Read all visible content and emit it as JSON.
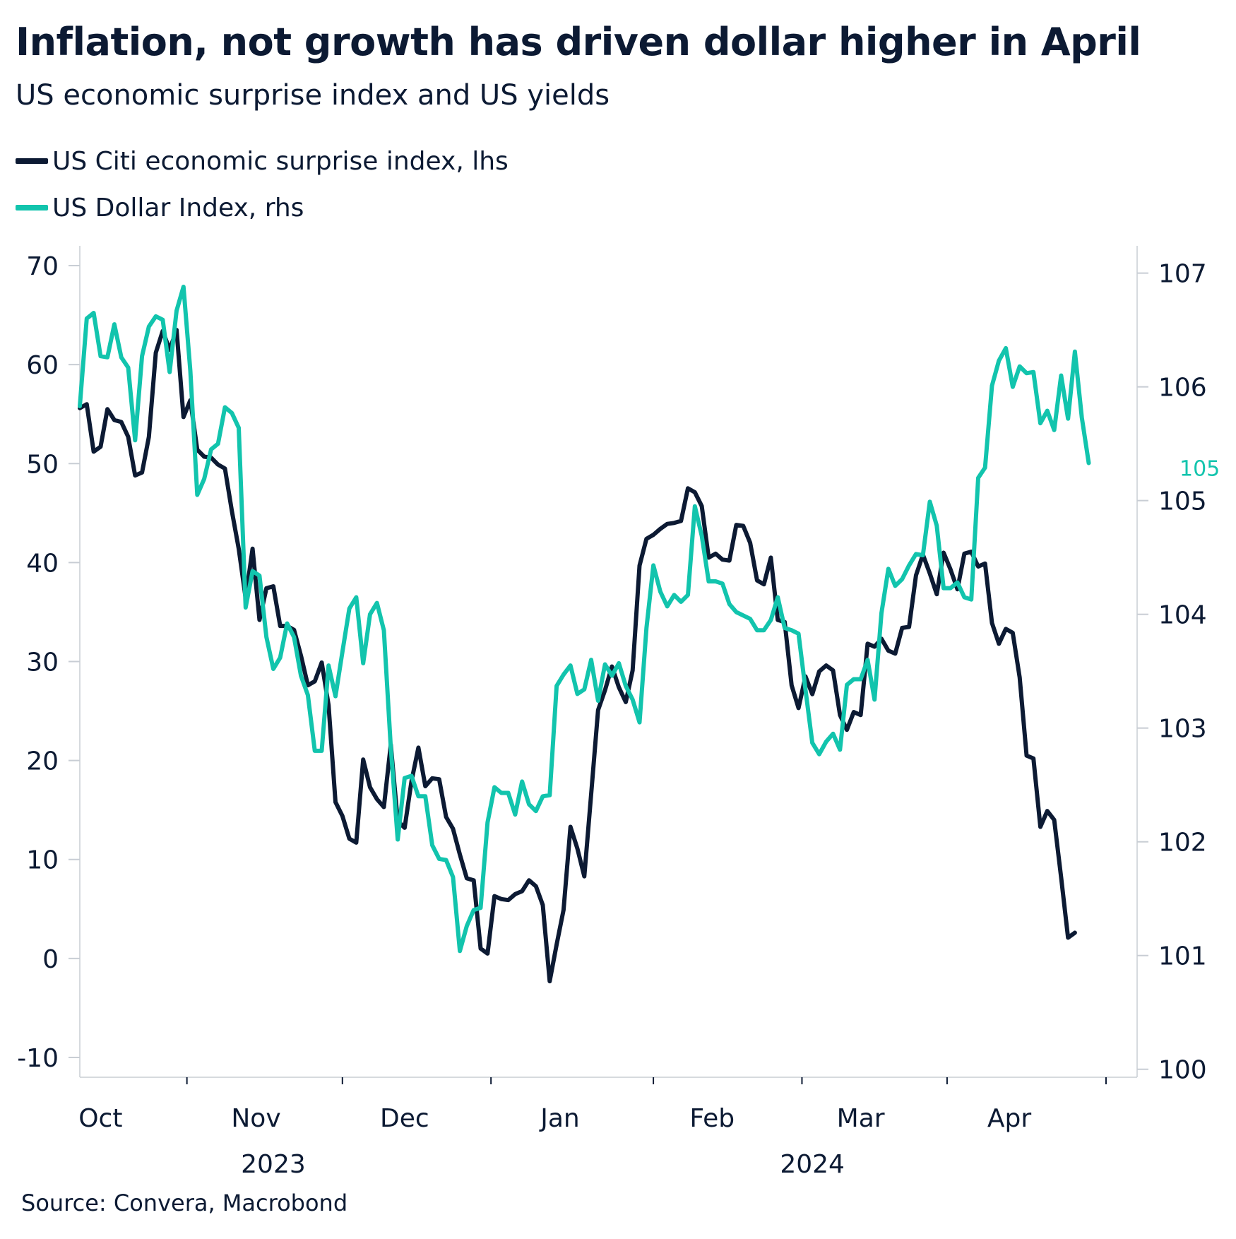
{
  "header": {
    "title": "Inflation, not growth has driven dollar higher in April",
    "subtitle": "US economic surprise index and US yields"
  },
  "legend": {
    "items": [
      {
        "label": "US Citi economic surprise index, lhs",
        "color": "#0c1a33"
      },
      {
        "label": "US Dollar Index, rhs",
        "color": "#12c4ad"
      }
    ]
  },
  "footer": {
    "source": "Source: Convera, Macrobond"
  },
  "colors": {
    "axis": "#c8cdd4",
    "text": "#0c1a33",
    "surprise": "#0c1a33",
    "dollar": "#12c4ad"
  },
  "chart_data": {
    "type": "line",
    "title": "Inflation, not growth has driven dollar higher in April",
    "subtitle": "US economic surprise index and US yields",
    "x_range": [
      0,
      30.6
    ],
    "x_unit": "weeks since 2023-09-25",
    "month_labels": [
      {
        "label": "Oct",
        "x": 0.6
      },
      {
        "label": "Nov",
        "x": 5.1
      },
      {
        "label": "Dec",
        "x": 9.4
      },
      {
        "label": "Jan",
        "x": 13.9
      },
      {
        "label": "Feb",
        "x": 18.3
      },
      {
        "label": "Mar",
        "x": 22.6
      },
      {
        "label": "Apr",
        "x": 26.9
      }
    ],
    "month_ticks": [
      3.1,
      7.6,
      11.9,
      16.6,
      20.9,
      25.1,
      29.7
    ],
    "year_labels": [
      {
        "label": "2023",
        "x": 5.6
      },
      {
        "label": "2024",
        "x": 21.2
      }
    ],
    "y_left": {
      "min": -12,
      "max": 72,
      "ticks": [
        70,
        60,
        50,
        40,
        30,
        20,
        10,
        0,
        -10
      ]
    },
    "y_right": {
      "min": 99.93,
      "max": 107.24,
      "ticks": [
        107,
        106,
        105,
        104,
        103,
        102,
        101,
        100
      ]
    },
    "last_value_label": {
      "series": "US Dollar Index, rhs",
      "text": "105",
      "value": 105.3
    },
    "series": [
      {
        "name": "US Citi economic surprise index, lhs",
        "axis": "left",
        "color": "#0c1a33",
        "points": [
          [
            0,
            55.6
          ],
          [
            0.2,
            56
          ],
          [
            0.4,
            51.2
          ],
          [
            0.6,
            51.7
          ],
          [
            0.8,
            55.5
          ],
          [
            1.0,
            54.4
          ],
          [
            1.2,
            54.2
          ],
          [
            1.4,
            52.7
          ],
          [
            1.6,
            48.8
          ],
          [
            1.8,
            49.1
          ],
          [
            2.0,
            52.7
          ],
          [
            2.2,
            61.2
          ],
          [
            2.4,
            63.4
          ],
          [
            2.6,
            61.5
          ],
          [
            2.8,
            63.5
          ],
          [
            3.0,
            54.7
          ],
          [
            3.2,
            56.4
          ],
          [
            3.4,
            51.4
          ],
          [
            3.6,
            50.7
          ],
          [
            3.8,
            50.6
          ],
          [
            4.0,
            49.9
          ],
          [
            4.2,
            49.5
          ],
          [
            4.4,
            45.2
          ],
          [
            4.6,
            41.4
          ],
          [
            4.8,
            36.4
          ],
          [
            5.0,
            41.4
          ],
          [
            5.2,
            34.2
          ],
          [
            5.4,
            37.4
          ],
          [
            5.6,
            37.6
          ],
          [
            5.8,
            33.6
          ],
          [
            6.0,
            33.6
          ],
          [
            6.2,
            33.2
          ],
          [
            6.4,
            30.6
          ],
          [
            6.6,
            27.6
          ],
          [
            6.8,
            28
          ],
          [
            7.0,
            29.9
          ],
          [
            7.2,
            25.6
          ],
          [
            7.4,
            15.8
          ],
          [
            7.6,
            14.4
          ],
          [
            7.8,
            12.1
          ],
          [
            8.0,
            11.7
          ],
          [
            8.2,
            20.1
          ],
          [
            8.4,
            17.3
          ],
          [
            8.6,
            16.1
          ],
          [
            8.8,
            15.3
          ],
          [
            9.0,
            21.6
          ],
          [
            9.2,
            13.9
          ],
          [
            9.4,
            13.2
          ],
          [
            9.6,
            17.9
          ],
          [
            9.8,
            21.3
          ],
          [
            10.0,
            17.4
          ],
          [
            10.2,
            18.2
          ],
          [
            10.4,
            18.1
          ],
          [
            10.6,
            14.3
          ],
          [
            10.8,
            13.1
          ],
          [
            11.0,
            10.5
          ],
          [
            11.2,
            8.1
          ],
          [
            11.4,
            7.9
          ],
          [
            11.6,
            1
          ],
          [
            11.8,
            0.5
          ],
          [
            12.0,
            6.3
          ],
          [
            12.2,
            6
          ],
          [
            12.4,
            5.9
          ],
          [
            12.6,
            6.5
          ],
          [
            12.8,
            6.8
          ],
          [
            13.0,
            7.9
          ],
          [
            13.2,
            7.3
          ],
          [
            13.4,
            5.4
          ],
          [
            13.6,
            -2.3
          ],
          [
            13.8,
            1.4
          ],
          [
            14.0,
            4.9
          ],
          [
            14.2,
            13.3
          ],
          [
            14.4,
            11.1
          ],
          [
            14.6,
            8.3
          ],
          [
            14.8,
            16.6
          ],
          [
            15.0,
            25.1
          ],
          [
            15.2,
            27.1
          ],
          [
            15.4,
            29.5
          ],
          [
            15.6,
            27.4
          ],
          [
            15.8,
            25.9
          ],
          [
            16.0,
            29.1
          ],
          [
            16.2,
            39.7
          ],
          [
            16.4,
            42.4
          ],
          [
            16.6,
            42.8
          ],
          [
            16.8,
            43.4
          ],
          [
            17.0,
            43.9
          ],
          [
            17.2,
            44
          ],
          [
            17.4,
            44.2
          ],
          [
            17.6,
            47.5
          ],
          [
            17.8,
            47.1
          ],
          [
            18.0,
            45.7
          ],
          [
            18.2,
            40.5
          ],
          [
            18.4,
            40.9
          ],
          [
            18.6,
            40.3
          ],
          [
            18.8,
            40.2
          ],
          [
            19.0,
            43.8
          ],
          [
            19.2,
            43.7
          ],
          [
            19.4,
            42
          ],
          [
            19.6,
            38.2
          ],
          [
            19.8,
            37.8
          ],
          [
            20.0,
            40.5
          ],
          [
            20.2,
            34.2
          ],
          [
            20.4,
            34
          ],
          [
            20.6,
            27.6
          ],
          [
            20.8,
            25.3
          ],
          [
            21.0,
            28.5
          ],
          [
            21.2,
            26.7
          ],
          [
            21.4,
            29
          ],
          [
            21.6,
            29.6
          ],
          [
            21.8,
            29.1
          ],
          [
            22.0,
            24.6
          ],
          [
            22.2,
            23.1
          ],
          [
            22.4,
            24.9
          ],
          [
            22.6,
            24.6
          ],
          [
            22.8,
            31.8
          ],
          [
            23.0,
            31.5
          ],
          [
            23.2,
            32.3
          ],
          [
            23.4,
            31.1
          ],
          [
            23.6,
            30.8
          ],
          [
            23.8,
            33.4
          ],
          [
            24.0,
            33.5
          ],
          [
            24.2,
            38.7
          ],
          [
            24.4,
            40.8
          ],
          [
            24.6,
            38.9
          ],
          [
            24.8,
            36.8
          ],
          [
            25.0,
            41
          ],
          [
            25.2,
            39.3
          ],
          [
            25.4,
            37.3
          ],
          [
            25.6,
            40.9
          ],
          [
            25.8,
            41.1
          ],
          [
            26.0,
            39.6
          ],
          [
            26.2,
            39.9
          ],
          [
            26.4,
            33.9
          ],
          [
            26.6,
            31.8
          ],
          [
            26.8,
            33.3
          ],
          [
            27.0,
            32.9
          ],
          [
            27.2,
            28.4
          ],
          [
            27.4,
            20.5
          ],
          [
            27.6,
            20.2
          ],
          [
            27.8,
            13.3
          ],
          [
            28.0,
            14.9
          ],
          [
            28.2,
            14
          ],
          [
            28.4,
            8.2
          ],
          [
            28.6,
            2.1
          ],
          [
            28.8,
            2.6
          ]
        ]
      },
      {
        "name": "US Dollar Index, rhs",
        "axis": "right",
        "color": "#12c4ad",
        "points": [
          [
            0,
            105.83
          ],
          [
            0.2,
            106.6
          ],
          [
            0.4,
            106.65
          ],
          [
            0.6,
            106.27
          ],
          [
            0.8,
            106.26
          ],
          [
            1.0,
            106.55
          ],
          [
            1.2,
            106.26
          ],
          [
            1.4,
            106.17
          ],
          [
            1.6,
            105.53
          ],
          [
            1.8,
            106.27
          ],
          [
            2.0,
            106.53
          ],
          [
            2.2,
            106.62
          ],
          [
            2.4,
            106.59
          ],
          [
            2.6,
            106.13
          ],
          [
            2.8,
            106.67
          ],
          [
            3.0,
            106.88
          ],
          [
            3.2,
            106.14
          ],
          [
            3.4,
            105.05
          ],
          [
            3.6,
            105.19
          ],
          [
            3.8,
            105.45
          ],
          [
            4.0,
            105.5
          ],
          [
            4.2,
            105.82
          ],
          [
            4.4,
            105.77
          ],
          [
            4.6,
            105.64
          ],
          [
            4.8,
            104.06
          ],
          [
            5.0,
            104.38
          ],
          [
            5.2,
            104.34
          ],
          [
            5.4,
            103.8
          ],
          [
            5.6,
            103.52
          ],
          [
            5.8,
            103.62
          ],
          [
            6.0,
            103.92
          ],
          [
            6.2,
            103.8
          ],
          [
            6.4,
            103.46
          ],
          [
            6.6,
            103.29
          ],
          [
            6.8,
            102.8
          ],
          [
            7.0,
            102.8
          ],
          [
            7.2,
            103.55
          ],
          [
            7.4,
            103.28
          ],
          [
            7.6,
            103.67
          ],
          [
            7.8,
            104.05
          ],
          [
            8.0,
            104.15
          ],
          [
            8.2,
            103.57
          ],
          [
            8.4,
            104.0
          ],
          [
            8.6,
            104.1
          ],
          [
            8.8,
            103.86
          ],
          [
            9.0,
            102.83
          ],
          [
            9.2,
            102.02
          ],
          [
            9.4,
            102.56
          ],
          [
            9.6,
            102.58
          ],
          [
            9.8,
            102.4
          ],
          [
            10.0,
            102.4
          ],
          [
            10.2,
            101.97
          ],
          [
            10.4,
            101.85
          ],
          [
            10.6,
            101.84
          ],
          [
            10.8,
            101.69
          ],
          [
            11.0,
            101.04
          ],
          [
            11.2,
            101.26
          ],
          [
            11.4,
            101.4
          ],
          [
            11.6,
            101.42
          ],
          [
            11.8,
            102.17
          ],
          [
            12.0,
            102.48
          ],
          [
            12.2,
            102.43
          ],
          [
            12.4,
            102.43
          ],
          [
            12.6,
            102.24
          ],
          [
            12.8,
            102.53
          ],
          [
            13.0,
            102.33
          ],
          [
            13.2,
            102.27
          ],
          [
            13.4,
            102.4
          ],
          [
            13.6,
            102.41
          ],
          [
            13.8,
            103.37
          ],
          [
            14.0,
            103.47
          ],
          [
            14.2,
            103.55
          ],
          [
            14.4,
            103.3
          ],
          [
            14.6,
            103.34
          ],
          [
            14.8,
            103.6
          ],
          [
            15.0,
            103.24
          ],
          [
            15.2,
            103.56
          ],
          [
            15.4,
            103.46
          ],
          [
            15.6,
            103.57
          ],
          [
            15.8,
            103.37
          ],
          [
            16.0,
            103.25
          ],
          [
            16.2,
            103.05
          ],
          [
            16.4,
            103.88
          ],
          [
            16.6,
            104.43
          ],
          [
            16.8,
            104.2
          ],
          [
            17.0,
            104.07
          ],
          [
            17.2,
            104.17
          ],
          [
            17.4,
            104.11
          ],
          [
            17.6,
            104.17
          ],
          [
            17.8,
            104.95
          ],
          [
            18.0,
            104.69
          ],
          [
            18.2,
            104.29
          ],
          [
            18.4,
            104.29
          ],
          [
            18.6,
            104.27
          ],
          [
            18.8,
            104.09
          ],
          [
            19.0,
            104.02
          ],
          [
            19.2,
            103.99
          ],
          [
            19.4,
            103.96
          ],
          [
            19.6,
            103.86
          ],
          [
            19.8,
            103.86
          ],
          [
            20.0,
            103.95
          ],
          [
            20.2,
            104.15
          ],
          [
            20.4,
            103.88
          ],
          [
            20.6,
            103.86
          ],
          [
            20.8,
            103.83
          ],
          [
            21.0,
            103.34
          ],
          [
            21.2,
            102.87
          ],
          [
            21.4,
            102.77
          ],
          [
            21.6,
            102.88
          ],
          [
            21.8,
            102.95
          ],
          [
            22.0,
            102.81
          ],
          [
            22.2,
            103.38
          ],
          [
            22.4,
            103.43
          ],
          [
            22.6,
            103.43
          ],
          [
            22.8,
            103.6
          ],
          [
            23.0,
            103.25
          ],
          [
            23.2,
            104.01
          ],
          [
            23.4,
            104.4
          ],
          [
            23.6,
            104.25
          ],
          [
            23.8,
            104.31
          ],
          [
            24.0,
            104.43
          ],
          [
            24.2,
            104.53
          ],
          [
            24.4,
            104.52
          ],
          [
            24.6,
            104.99
          ],
          [
            24.8,
            104.78
          ],
          [
            25.0,
            104.23
          ],
          [
            25.2,
            104.23
          ],
          [
            25.4,
            104.28
          ],
          [
            25.6,
            104.15
          ],
          [
            25.8,
            104.13
          ],
          [
            26.0,
            105.2
          ],
          [
            26.2,
            105.29
          ],
          [
            26.4,
            106.01
          ],
          [
            26.6,
            106.23
          ],
          [
            26.8,
            106.34
          ],
          [
            27.0,
            106.0
          ],
          [
            27.2,
            106.18
          ],
          [
            27.4,
            106.12
          ],
          [
            27.6,
            106.13
          ],
          [
            27.8,
            105.68
          ],
          [
            28.0,
            105.79
          ],
          [
            28.2,
            105.62
          ],
          [
            28.4,
            106.1
          ],
          [
            28.6,
            105.72
          ],
          [
            28.8,
            106.31
          ],
          [
            29.0,
            105.73
          ],
          [
            29.2,
            105.33
          ]
        ]
      }
    ]
  }
}
